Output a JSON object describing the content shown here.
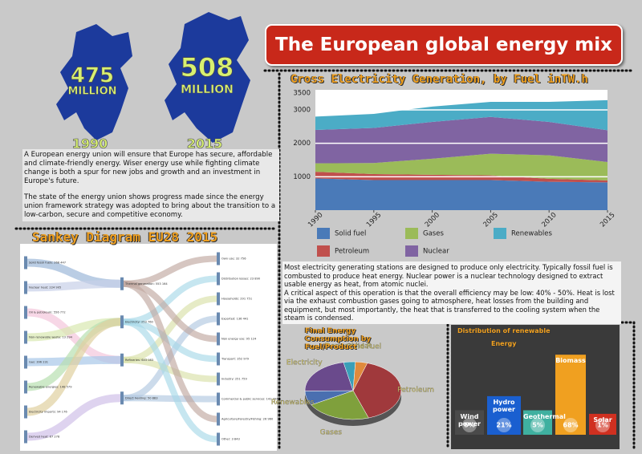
{
  "header": {
    "title": "The European global energy mix"
  },
  "maps": [
    {
      "value": "475",
      "unit": "MILLION",
      "year": "1990"
    },
    {
      "value": "508",
      "unit": "MILLION",
      "year": "2015"
    }
  ],
  "intro": {
    "paragraphs": [
      "A European energy union will ensure that Europe has secure, affordable and climate-friendly energy. Wiser energy use while fighting climate change is both a spur for new jobs and growth and an investment in Europe's future.",
      "The state of the energy union shows progress made since the energy union framework strategy was adopted to bring about the transition to a low-carbon, secure and competitive economy."
    ]
  },
  "sankey": {
    "title": "Sankey Diagram EU28 2015",
    "sources": [
      "Solid fossil fuels: 268 447",
      "Nuclear heat: 224 905",
      "Oil & petroleum: 556 772",
      "Non-renewable waste: 13 294",
      "Gas: 396 231",
      "Renewable energies: 148 579",
      "Electricity imports: 94 176",
      "Derived heat: 87 278"
    ],
    "processes": [
      "Thermal generation: 553 164",
      "Electricity: 253 760",
      "Refineries: 643 083",
      "Direct heating: 50 883"
    ],
    "uses": [
      "Own use: 32 756",
      "Distribution losses: 23 890",
      "Households: 291 751",
      "Exported: 136 441",
      "Non energy use: 95 124",
      "Transport: 352 979",
      "Industry: 251 759",
      "Commercial & public services: 142 394",
      "Agriculture/Forestry/Fishing: 26 960",
      "Other: 3 843"
    ]
  },
  "notes": {
    "paragraphs": [
      "Most electricity generating stations are designed to produce only electricity. Typically fossil fuel is combusted to produce heat energy. Nuclear power is a nuclear technology designed to extract usable energy as heat, from atomic nuclei.",
      "A critical aspect of this operation is that the overall efficiency may be low: 40% - 50%. Heat is lost via the exhaust combustion gases going to atmosphere, heat losses from the building and equipment, but most importantly, the heat that is transferred to the cooling system when the steam is condensed."
    ]
  },
  "chart_data": [
    {
      "type": "area",
      "title": "Gross Electricity Generation, by Fuel inTW.h",
      "x": [
        1990,
        1995,
        2000,
        2005,
        2010,
        2015
      ],
      "xlim": [
        1990,
        2015
      ],
      "xticks": [
        1990,
        1995,
        2000,
        2005,
        2010,
        2015
      ],
      "ylim": [
        0,
        3600
      ],
      "yticks": [
        1000,
        2000,
        3000,
        3500
      ],
      "grid": true,
      "stacked": true,
      "series": [
        {
          "name": "Solid fuel",
          "color": "#4a7ab8",
          "values": [
            950,
            900,
            900,
            900,
            850,
            830
          ]
        },
        {
          "name": "Petroleum",
          "color": "#c0504d",
          "values": [
            200,
            180,
            160,
            140,
            90,
            60
          ]
        },
        {
          "name": "Gases",
          "color": "#9bbb59",
          "values": [
            250,
            330,
            480,
            650,
            700,
            550
          ]
        },
        {
          "name": "Nuclear",
          "color": "#8064a2",
          "values": [
            1000,
            1050,
            1100,
            1100,
            1000,
            950
          ]
        },
        {
          "name": "Renewables",
          "color": "#4bacc6",
          "values": [
            400,
            420,
            460,
            450,
            600,
            900
          ]
        }
      ]
    },
    {
      "type": "pie",
      "title": "Final Energy Consumption by Fuel/Product",
      "categories": [
        "Petroleum",
        "Gases",
        "Renewables",
        "Electricity",
        "Derived heat",
        "Solid Fuel"
      ],
      "values": [
        40,
        22,
        8,
        22,
        4,
        4
      ],
      "colors": [
        "#a0393c",
        "#7fa03c",
        "#4a6fb0",
        "#6a4a8c",
        "#3a9fb8",
        "#e08a3c"
      ]
    },
    {
      "type": "bar",
      "title": "Distribution of renewable",
      "subtitle": "Energy",
      "categories": [
        "Wind power",
        "Hydro power",
        "Geothermal",
        "Biomass",
        "Solar"
      ],
      "values": [
        5,
        21,
        5,
        68,
        1
      ],
      "value_labels": [
        "5%",
        "21%",
        "5%",
        "68%",
        "1%"
      ],
      "colors": [
        "#4a4a4a",
        "#1a5fd0",
        "#3fb0a0",
        "#f0a020",
        "#d03020"
      ]
    }
  ]
}
